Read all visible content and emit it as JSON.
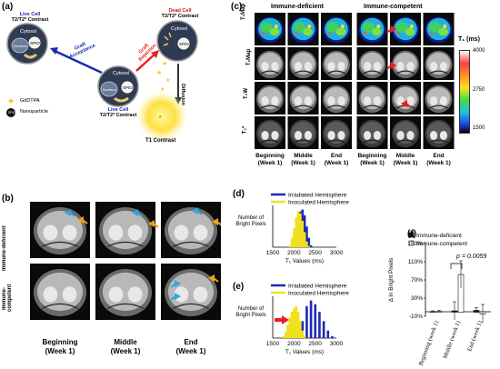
{
  "panel_a": {
    "label": "(a)",
    "live_cell_top": "Live Cell",
    "contrast_top": "T2/T2* Contrast",
    "dead_cell": "Dead Cell",
    "contrast_dead": "T2/T2* Contrast",
    "live_cell_center": "Live Cell",
    "contrast_center": "T2/T2* Contrast",
    "cytosol": "Cytosol",
    "nucleus": "Nucleus",
    "spio": "SPIO",
    "graft_acceptance": [
      "Graft",
      "Acceptance"
    ],
    "graft_rejection": [
      "Graft",
      "Rejection"
    ],
    "diffusion": "Diffusion",
    "t1_contrast": "T1 Contrast",
    "legend_gd": "GdDTPA",
    "legend_np": "Nanoparticle",
    "legend_spio": "SPIO"
  },
  "panel_b": {
    "label": "(b)",
    "row_labels": [
      "Immune-deficient",
      "Immune-competent"
    ],
    "col_labels": [
      [
        "Beginning",
        "(Week 1)"
      ],
      [
        "Middle",
        "(Week 1)"
      ],
      [
        "End",
        "(Week 1)"
      ]
    ]
  },
  "panel_c": {
    "label": "(c)",
    "group_labels": [
      "Immune-deficient",
      "Immune-competent"
    ],
    "row_labels": [
      "T₁Map",
      "T₂Map",
      "T₂W",
      "T₂*"
    ],
    "col_labels": [
      [
        "Beginning",
        "(Week 1)"
      ],
      [
        "Middle",
        "(Week 1)"
      ],
      [
        "End",
        "(Week 1)"
      ],
      [
        "Beginning",
        "(Week 1)"
      ],
      [
        "Middle",
        "(Week 1)"
      ],
      [
        "End",
        "(Week 1)"
      ]
    ],
    "colorbar_title": "T₁ (ms)",
    "colorbar_ticks": [
      "4000",
      "2750",
      "1500"
    ]
  },
  "colors": {
    "irradiated": "#1a2ab0",
    "inoculated": "#f0e020",
    "arrow_blue": "#2aa8e8",
    "arrow_orange": "#f0a020",
    "arrow_red": "#e82020"
  },
  "chart_data": [
    {
      "id": "d",
      "type": "area",
      "label": "(d)",
      "xlabel": "T₁ Values (ms)",
      "ylabel": "Number of Bright Pixels",
      "xlim": [
        1500,
        3000
      ],
      "xticks": [
        "1500",
        "2000",
        "2500",
        "3000"
      ],
      "legend": [
        "Irradiated Hemisphere",
        "Inoculated Hemisphere"
      ],
      "series": [
        {
          "name": "Irradiated Hemisphere",
          "x": [
            1950,
            2000,
            2050,
            2100,
            2150,
            2200,
            2250,
            2300,
            2350,
            2400
          ],
          "values": [
            0.05,
            0.2,
            0.45,
            0.7,
            0.95,
            1.0,
            0.85,
            0.55,
            0.25,
            0.05
          ]
        },
        {
          "name": "Inoculated Hemisphere",
          "x": [
            1900,
            1950,
            2000,
            2050,
            2100,
            2150,
            2200,
            2250,
            2300,
            2350
          ],
          "values": [
            0.05,
            0.25,
            0.5,
            0.8,
            0.95,
            0.9,
            0.7,
            0.4,
            0.15,
            0.03
          ]
        }
      ]
    },
    {
      "id": "e",
      "type": "area",
      "label": "(e)",
      "xlabel": "T₁ Values (ms)",
      "ylabel": "Number of Bright Pixels",
      "xlim": [
        1500,
        3000
      ],
      "xticks": [
        "1500",
        "2000",
        "2500",
        "3000"
      ],
      "legend": [
        "Irradiated Hemisphere",
        "Inoculated Hemisphere"
      ],
      "series": [
        {
          "name": "Irradiated Hemisphere",
          "x": [
            2100,
            2200,
            2300,
            2400,
            2500,
            2600,
            2700,
            2800,
            2900
          ],
          "values": [
            0.1,
            0.45,
            0.85,
            1.0,
            0.9,
            0.7,
            0.45,
            0.2,
            0.05
          ]
        },
        {
          "name": "Inoculated Hemisphere",
          "x": [
            1750,
            1800,
            1850,
            1900,
            1950,
            2000,
            2050,
            2100,
            2150,
            2200,
            2250
          ],
          "values": [
            0.05,
            0.15,
            0.35,
            0.55,
            0.7,
            0.8,
            0.85,
            0.7,
            0.45,
            0.2,
            0.05
          ]
        }
      ]
    },
    {
      "id": "f",
      "type": "bar",
      "label": "(f)",
      "ylabel": "Δ in Bright Pixels",
      "categories": [
        "Beginning (week 1)",
        "Middle (week 1)",
        "End (week 1)"
      ],
      "yticks": [
        "-10%",
        "30%",
        "70%",
        "110%",
        "150%"
      ],
      "ylim": [
        -10,
        150
      ],
      "legend": [
        "Immune-deficient",
        "Immune-competent"
      ],
      "annotation": "p = 0.0059",
      "series": [
        {
          "name": "Immune-deficient",
          "values": [
            0,
            2,
            3
          ],
          "errors": [
            2,
            20,
            6
          ]
        },
        {
          "name": "Immune-competent",
          "values": [
            1,
            82,
            -4
          ],
          "errors": [
            2,
            30,
            20
          ]
        }
      ]
    }
  ]
}
